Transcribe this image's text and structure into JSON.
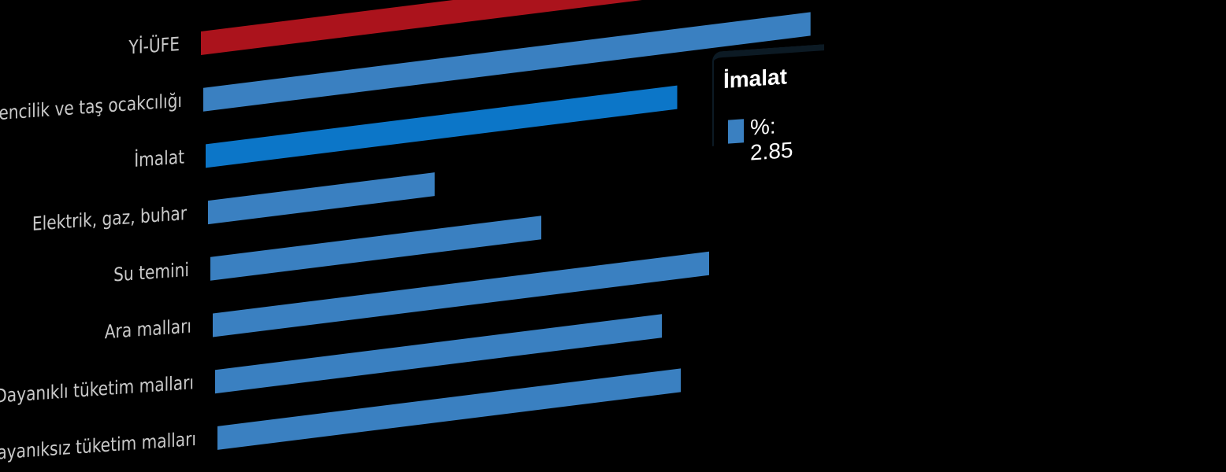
{
  "chart_data": {
    "type": "bar",
    "orientation": "horizontal",
    "categories": [
      "Yİ-ÜFE",
      "Madencilik ve taş ocakcılığı",
      "İmalat",
      "Elektrik, gaz, buhar",
      "Su temini",
      "Ara malları",
      "Dayanıklı tüketim malları",
      "Dayanıksız tüketim malları"
    ],
    "series": [
      {
        "values": [
          2.75,
          3.67,
          2.85,
          1.37,
          2.0,
          3.0,
          2.7,
          2.8
        ]
      }
    ],
    "partial_bar_above_value": 2.75,
    "xlim": [
      0,
      4
    ],
    "grid": false,
    "legend": "none",
    "colors": {
      "highlight": "#ab131c",
      "default": "#3a80c1",
      "hovered": "#0c76c8",
      "label": "#c9c9c9",
      "background": "#000000"
    },
    "tooltip": {
      "category": "İmalat",
      "series_label": "%",
      "value": "2.85",
      "text": "%: 2.85"
    }
  }
}
